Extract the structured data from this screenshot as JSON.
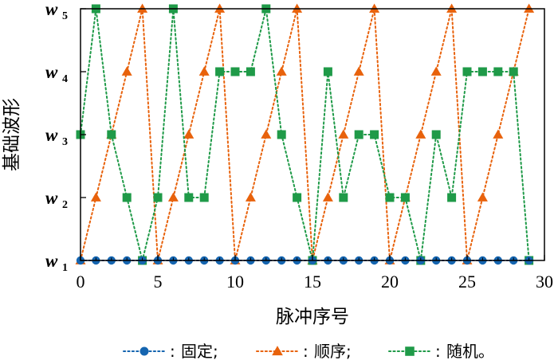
{
  "chart_data": {
    "type": "line",
    "xlabel": "脉冲序号",
    "ylabel": "基础波形",
    "xlim": [
      0,
      30
    ],
    "xticks": [
      0,
      5,
      10,
      15,
      20,
      25,
      30
    ],
    "xtick_labels": [
      "0",
      "5",
      "10",
      "15",
      "20",
      "25",
      "30"
    ],
    "ylim": [
      1,
      5
    ],
    "ytick_labels": [
      {
        "main": "w",
        "sub": "1"
      },
      {
        "main": "w",
        "sub": "2"
      },
      {
        "main": "w",
        "sub": "3"
      },
      {
        "main": "w",
        "sub": "4"
      },
      {
        "main": "w",
        "sub": "5"
      }
    ],
    "x": [
      0,
      1,
      2,
      3,
      4,
      5,
      6,
      7,
      8,
      9,
      10,
      11,
      12,
      13,
      14,
      15,
      16,
      17,
      18,
      19,
      20,
      21,
      22,
      23,
      24,
      25,
      26,
      27,
      28,
      29
    ],
    "series": [
      {
        "name": "固定",
        "marker": "circle",
        "color": "#1565b0",
        "values": [
          1,
          1,
          1,
          1,
          1,
          1,
          1,
          1,
          1,
          1,
          1,
          1,
          1,
          1,
          1,
          1,
          1,
          1,
          1,
          1,
          1,
          1,
          1,
          1,
          1,
          1,
          1,
          1,
          1,
          1
        ]
      },
      {
        "name": "顺序",
        "marker": "triangle",
        "color": "#e8620c",
        "values": [
          1,
          2,
          3,
          4,
          5,
          1,
          2,
          3,
          4,
          5,
          1,
          2,
          3,
          4,
          5,
          1,
          2,
          3,
          4,
          5,
          1,
          2,
          3,
          4,
          5,
          1,
          2,
          3,
          4,
          5
        ]
      },
      {
        "name": "随机",
        "marker": "square",
        "color": "#1f9a48",
        "values": [
          3,
          5,
          3,
          2,
          1,
          2,
          5,
          2,
          2,
          4,
          4,
          4,
          5,
          3,
          2,
          1,
          4,
          2,
          3,
          3,
          2,
          2,
          1,
          3,
          2,
          4,
          4,
          4,
          4,
          1
        ]
      }
    ],
    "legend": {
      "position": "bottom",
      "separator": ":",
      "items": [
        "固定;",
        "顺序;",
        "随机。"
      ]
    },
    "grid": false
  }
}
